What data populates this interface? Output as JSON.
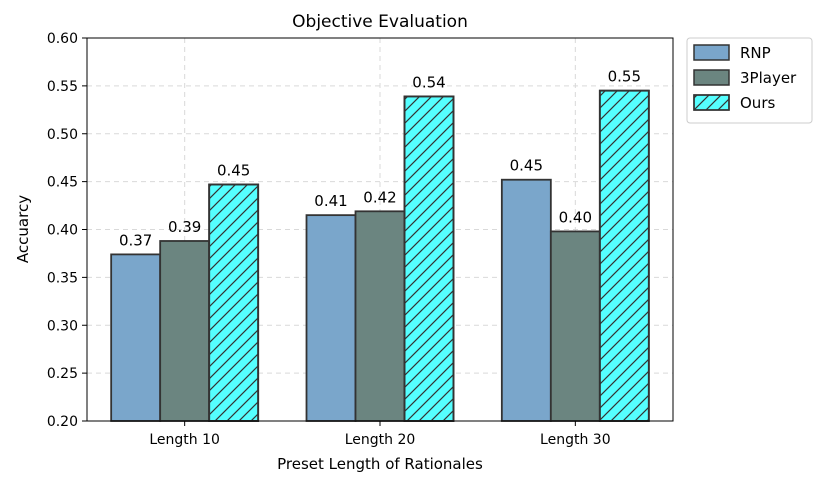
{
  "chart_data": {
    "type": "bar",
    "title": "Objective Evaluation",
    "xlabel": "Preset Length of Rationales",
    "ylabel": "Accuarcy",
    "ylim": [
      0.2,
      0.6
    ],
    "yticks": [
      "0.20",
      "0.25",
      "0.30",
      "0.35",
      "0.40",
      "0.45",
      "0.50",
      "0.55",
      "0.60"
    ],
    "grid": true,
    "legend_position": "outside-top-right",
    "categories": [
      "Length 10",
      "Length 20",
      "Length 30"
    ],
    "series": [
      {
        "name": "RNP",
        "values": [
          0.374,
          0.415,
          0.452
        ],
        "labels": [
          "0.37",
          "0.41",
          "0.45"
        ],
        "color": "#7aa6cb",
        "hatch": false
      },
      {
        "name": "3Player",
        "values": [
          0.388,
          0.419,
          0.398
        ],
        "labels": [
          "0.39",
          "0.42",
          "0.40"
        ],
        "color": "#6b8580",
        "hatch": false
      },
      {
        "name": "Ours",
        "values": [
          0.447,
          0.539,
          0.545
        ],
        "labels": [
          "0.45",
          "0.54",
          "0.55"
        ],
        "color": "#55ffff",
        "hatch": true
      }
    ]
  }
}
